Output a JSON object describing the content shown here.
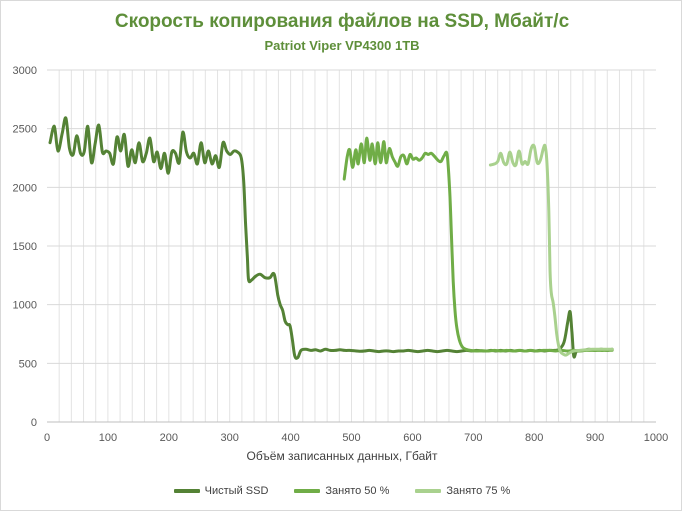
{
  "chart_data": {
    "type": "line",
    "title": "Скорость копирования файлов на SSD, Мбайт/с",
    "subtitle": "Patriot Viper VP4300  1TB",
    "xlabel": "Объём записанных данных, Гбайт",
    "ylabel": "",
    "xlim": [
      0,
      1000
    ],
    "ylim": [
      0,
      3000
    ],
    "x_ticks": [
      0,
      100,
      200,
      300,
      400,
      500,
      600,
      700,
      800,
      900,
      1000
    ],
    "y_ticks": [
      0,
      500,
      1000,
      1500,
      2000,
      2500,
      3000
    ],
    "grid": "vertical minor + horizontal major",
    "legend_position": "bottom",
    "series": [
      {
        "name": "Чистый SSD",
        "color": "#548235",
        "points": [
          [
            5,
            2380
          ],
          [
            12,
            2520
          ],
          [
            18,
            2310
          ],
          [
            25,
            2460
          ],
          [
            31,
            2590
          ],
          [
            37,
            2330
          ],
          [
            43,
            2280
          ],
          [
            49,
            2440
          ],
          [
            55,
            2290
          ],
          [
            61,
            2300
          ],
          [
            67,
            2520
          ],
          [
            73,
            2210
          ],
          [
            79,
            2370
          ],
          [
            85,
            2530
          ],
          [
            91,
            2300
          ],
          [
            97,
            2310
          ],
          [
            103,
            2290
          ],
          [
            109,
            2200
          ],
          [
            115,
            2430
          ],
          [
            121,
            2310
          ],
          [
            127,
            2450
          ],
          [
            133,
            2180
          ],
          [
            139,
            2320
          ],
          [
            145,
            2210
          ],
          [
            151,
            2380
          ],
          [
            157,
            2220
          ],
          [
            163,
            2290
          ],
          [
            169,
            2420
          ],
          [
            175,
            2220
          ],
          [
            181,
            2300
          ],
          [
            187,
            2160
          ],
          [
            193,
            2290
          ],
          [
            199,
            2120
          ],
          [
            205,
            2300
          ],
          [
            211,
            2290
          ],
          [
            217,
            2210
          ],
          [
            223,
            2470
          ],
          [
            229,
            2300
          ],
          [
            235,
            2250
          ],
          [
            241,
            2290
          ],
          [
            247,
            2200
          ],
          [
            253,
            2380
          ],
          [
            259,
            2210
          ],
          [
            265,
            2310
          ],
          [
            271,
            2200
          ],
          [
            277,
            2270
          ],
          [
            283,
            2170
          ],
          [
            289,
            2380
          ],
          [
            295,
            2310
          ],
          [
            301,
            2280
          ],
          [
            307,
            2310
          ],
          [
            313,
            2300
          ],
          [
            319,
            2250
          ],
          [
            323,
            2050
          ],
          [
            326,
            1700
          ],
          [
            329,
            1400
          ],
          [
            331,
            1210
          ],
          [
            336,
            1210
          ],
          [
            342,
            1240
          ],
          [
            350,
            1260
          ],
          [
            358,
            1230
          ],
          [
            366,
            1230
          ],
          [
            373,
            1260
          ],
          [
            379,
            1080
          ],
          [
            383,
            1000
          ],
          [
            387,
            950
          ],
          [
            391,
            860
          ],
          [
            395,
            830
          ],
          [
            399,
            820
          ],
          [
            403,
            700
          ],
          [
            407,
            560
          ],
          [
            412,
            550
          ],
          [
            417,
            610
          ],
          [
            425,
            620
          ],
          [
            433,
            610
          ],
          [
            441,
            615
          ],
          [
            449,
            605
          ],
          [
            457,
            620
          ],
          [
            465,
            610
          ],
          [
            473,
            610
          ],
          [
            481,
            615
          ],
          [
            489,
            610
          ],
          [
            497,
            610
          ],
          [
            505,
            607
          ],
          [
            513,
            603
          ],
          [
            521,
            605
          ],
          [
            529,
            610
          ],
          [
            537,
            605
          ],
          [
            545,
            600
          ],
          [
            553,
            605
          ],
          [
            561,
            605
          ],
          [
            569,
            600
          ],
          [
            577,
            605
          ],
          [
            585,
            605
          ],
          [
            593,
            610
          ],
          [
            601,
            605
          ],
          [
            609,
            600
          ],
          [
            617,
            605
          ],
          [
            625,
            610
          ],
          [
            633,
            605
          ],
          [
            641,
            600
          ],
          [
            649,
            605
          ],
          [
            657,
            610
          ],
          [
            665,
            605
          ],
          [
            673,
            600
          ],
          [
            681,
            605
          ],
          [
            689,
            610
          ],
          [
            697,
            605
          ],
          [
            705,
            610
          ],
          [
            713,
            607
          ],
          [
            721,
            605
          ],
          [
            729,
            610
          ],
          [
            737,
            605
          ],
          [
            745,
            610
          ],
          [
            753,
            605
          ],
          [
            761,
            610
          ],
          [
            769,
            605
          ],
          [
            777,
            610
          ],
          [
            785,
            605
          ],
          [
            793,
            610
          ],
          [
            801,
            605
          ],
          [
            809,
            610
          ],
          [
            817,
            605
          ],
          [
            825,
            610
          ],
          [
            833,
            610
          ],
          [
            841,
            620
          ],
          [
            849,
            680
          ],
          [
            855,
            850
          ],
          [
            859,
            940
          ],
          [
            862,
            760
          ],
          [
            865,
            560
          ],
          [
            869,
            600
          ],
          [
            874,
            605
          ],
          [
            882,
            610
          ],
          [
            890,
            620
          ],
          [
            900,
            610
          ],
          [
            910,
            620
          ],
          [
            920,
            610
          ],
          [
            928,
            620
          ]
        ]
      },
      {
        "name": "Занято 50 %",
        "color": "#70ad47",
        "points": [
          [
            488,
            2070
          ],
          [
            493,
            2260
          ],
          [
            497,
            2320
          ],
          [
            502,
            2170
          ],
          [
            507,
            2320
          ],
          [
            511,
            2200
          ],
          [
            516,
            2370
          ],
          [
            521,
            2210
          ],
          [
            525,
            2420
          ],
          [
            530,
            2230
          ],
          [
            534,
            2370
          ],
          [
            539,
            2200
          ],
          [
            543,
            2380
          ],
          [
            548,
            2210
          ],
          [
            553,
            2390
          ],
          [
            557,
            2210
          ],
          [
            562,
            2330
          ],
          [
            567,
            2260
          ],
          [
            571,
            2220
          ],
          [
            576,
            2180
          ],
          [
            581,
            2260
          ],
          [
            586,
            2270
          ],
          [
            591,
            2200
          ],
          [
            596,
            2280
          ],
          [
            601,
            2240
          ],
          [
            606,
            2250
          ],
          [
            611,
            2230
          ],
          [
            616,
            2250
          ],
          [
            621,
            2290
          ],
          [
            626,
            2280
          ],
          [
            631,
            2290
          ],
          [
            637,
            2260
          ],
          [
            642,
            2230
          ],
          [
            647,
            2220
          ],
          [
            652,
            2270
          ],
          [
            657,
            2280
          ],
          [
            661,
            2000
          ],
          [
            664,
            1600
          ],
          [
            667,
            1200
          ],
          [
            670,
            950
          ],
          [
            673,
            800
          ],
          [
            677,
            700
          ],
          [
            682,
            640
          ],
          [
            688,
            620
          ],
          [
            695,
            610
          ],
          [
            705,
            605
          ],
          [
            715,
            608
          ],
          [
            725,
            605
          ],
          [
            735,
            610
          ],
          [
            745,
            605
          ],
          [
            755,
            610
          ],
          [
            765,
            605
          ],
          [
            775,
            610
          ],
          [
            785,
            605
          ],
          [
            795,
            610
          ],
          [
            805,
            605
          ],
          [
            815,
            610
          ],
          [
            825,
            610
          ],
          [
            835,
            605
          ],
          [
            845,
            610
          ],
          [
            855,
            605
          ],
          [
            865,
            610
          ],
          [
            875,
            605
          ],
          [
            885,
            610
          ],
          [
            895,
            610
          ],
          [
            905,
            610
          ],
          [
            915,
            610
          ],
          [
            928,
            612
          ]
        ]
      },
      {
        "name": "Занято 75 %",
        "color": "#a9d18e",
        "points": [
          [
            728,
            2190
          ],
          [
            735,
            2200
          ],
          [
            740,
            2220
          ],
          [
            745,
            2290
          ],
          [
            750,
            2210
          ],
          [
            755,
            2200
          ],
          [
            760,
            2300
          ],
          [
            765,
            2210
          ],
          [
            770,
            2190
          ],
          [
            775,
            2310
          ],
          [
            780,
            2200
          ],
          [
            785,
            2220
          ],
          [
            790,
            2200
          ],
          [
            795,
            2330
          ],
          [
            800,
            2350
          ],
          [
            805,
            2210
          ],
          [
            810,
            2230
          ],
          [
            815,
            2330
          ],
          [
            818,
            2350
          ],
          [
            821,
            2200
          ],
          [
            824,
            1800
          ],
          [
            826,
            1300
          ],
          [
            828,
            1100
          ],
          [
            831,
            1020
          ],
          [
            834,
            900
          ],
          [
            837,
            750
          ],
          [
            840,
            650
          ],
          [
            843,
            600
          ],
          [
            847,
            580
          ],
          [
            852,
            570
          ],
          [
            858,
            590
          ],
          [
            865,
            605
          ],
          [
            875,
            610
          ],
          [
            885,
            615
          ],
          [
            895,
            620
          ],
          [
            905,
            620
          ],
          [
            915,
            620
          ],
          [
            928,
            620
          ]
        ]
      }
    ]
  }
}
